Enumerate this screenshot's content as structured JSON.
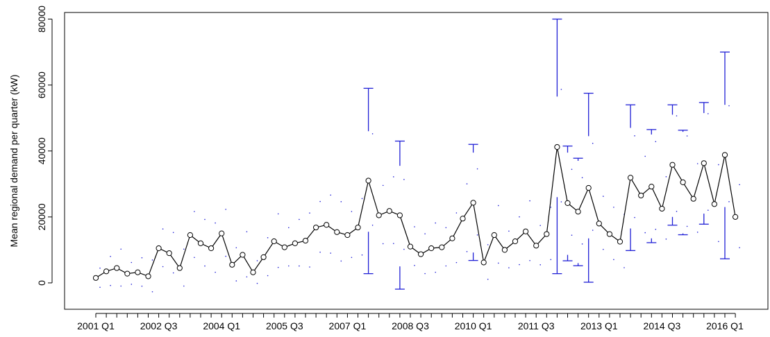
{
  "chart_data": {
    "type": "line",
    "title": "",
    "xlabel": "",
    "ylabel": "Mean regional demand per quarter (kW)",
    "ylim": [
      -8000,
      82000
    ],
    "yticks": [
      0,
      20000,
      40000,
      60000,
      80000
    ],
    "xtick_labels": [
      "2001 Q1",
      "2002 Q3",
      "2004 Q1",
      "2005 Q3",
      "2007 Q1",
      "2008 Q3",
      "2010 Q1",
      "2011 Q3",
      "2013 Q1",
      "2014 Q3",
      "2016 Q1"
    ],
    "grid": false,
    "legend": "none",
    "colors": {
      "mean_line": "#000000",
      "interval": "#1f1fd6",
      "dots": "#1f1fd6"
    },
    "mean": [
      1500,
      3500,
      4500,
      2800,
      3200,
      2000,
      10500,
      9000,
      4500,
      14500,
      12000,
      10500,
      15000,
      5500,
      8500,
      3200,
      7800,
      12600,
      10800,
      12000,
      12800,
      16800,
      17600,
      15400,
      14500,
      16800,
      31000,
      20500,
      21800,
      20500,
      11000,
      8700,
      10500,
      10800,
      13500,
      19500,
      24300,
      6200,
      14500,
      10000,
      12600,
      15600,
      11300,
      14800,
      41200,
      24200,
      21600,
      28800,
      18000,
      14800,
      12500,
      31900,
      26500,
      29200,
      22500,
      35800,
      30500,
      25500,
      36300,
      23900,
      38800,
      20000
    ],
    "intervals": [
      {
        "index": 26,
        "upper": [
          46000,
          59000
        ],
        "lower": [
          2800,
          15500
        ]
      },
      {
        "index": 29,
        "upper": [
          35500,
          43000
        ],
        "lower": [
          -1900,
          5000
        ]
      },
      {
        "index": 36,
        "upper": [
          39500,
          42000
        ],
        "lower": [
          6800,
          9200
        ]
      },
      {
        "index": 44,
        "upper": [
          56500,
          80000
        ],
        "lower": [
          2800,
          26000
        ]
      },
      {
        "index": 45,
        "upper": [
          39500,
          41500
        ],
        "lower": [
          6700,
          8500
        ]
      },
      {
        "index": 46,
        "upper": [
          37000,
          37800
        ],
        "lower": [
          5200,
          6000
        ]
      },
      {
        "index": 47,
        "upper": [
          44500,
          57500
        ],
        "lower": [
          200,
          13500
        ]
      },
      {
        "index": 51,
        "upper": [
          47000,
          54000
        ],
        "lower": [
          9800,
          16500
        ]
      },
      {
        "index": 53,
        "upper": [
          45000,
          46500
        ],
        "lower": [
          12200,
          13500
        ]
      },
      {
        "index": 55,
        "upper": [
          51000,
          54000
        ],
        "lower": [
          17500,
          20000
        ]
      },
      {
        "index": 56,
        "upper": [
          45800,
          46300
        ],
        "lower": [
          14600,
          15000
        ]
      },
      {
        "index": 58,
        "upper": [
          51500,
          54700
        ],
        "lower": [
          17800,
          21000
        ]
      },
      {
        "index": 60,
        "upper": [
          54000,
          70000
        ],
        "lower": [
          7300,
          23000
        ]
      }
    ]
  }
}
